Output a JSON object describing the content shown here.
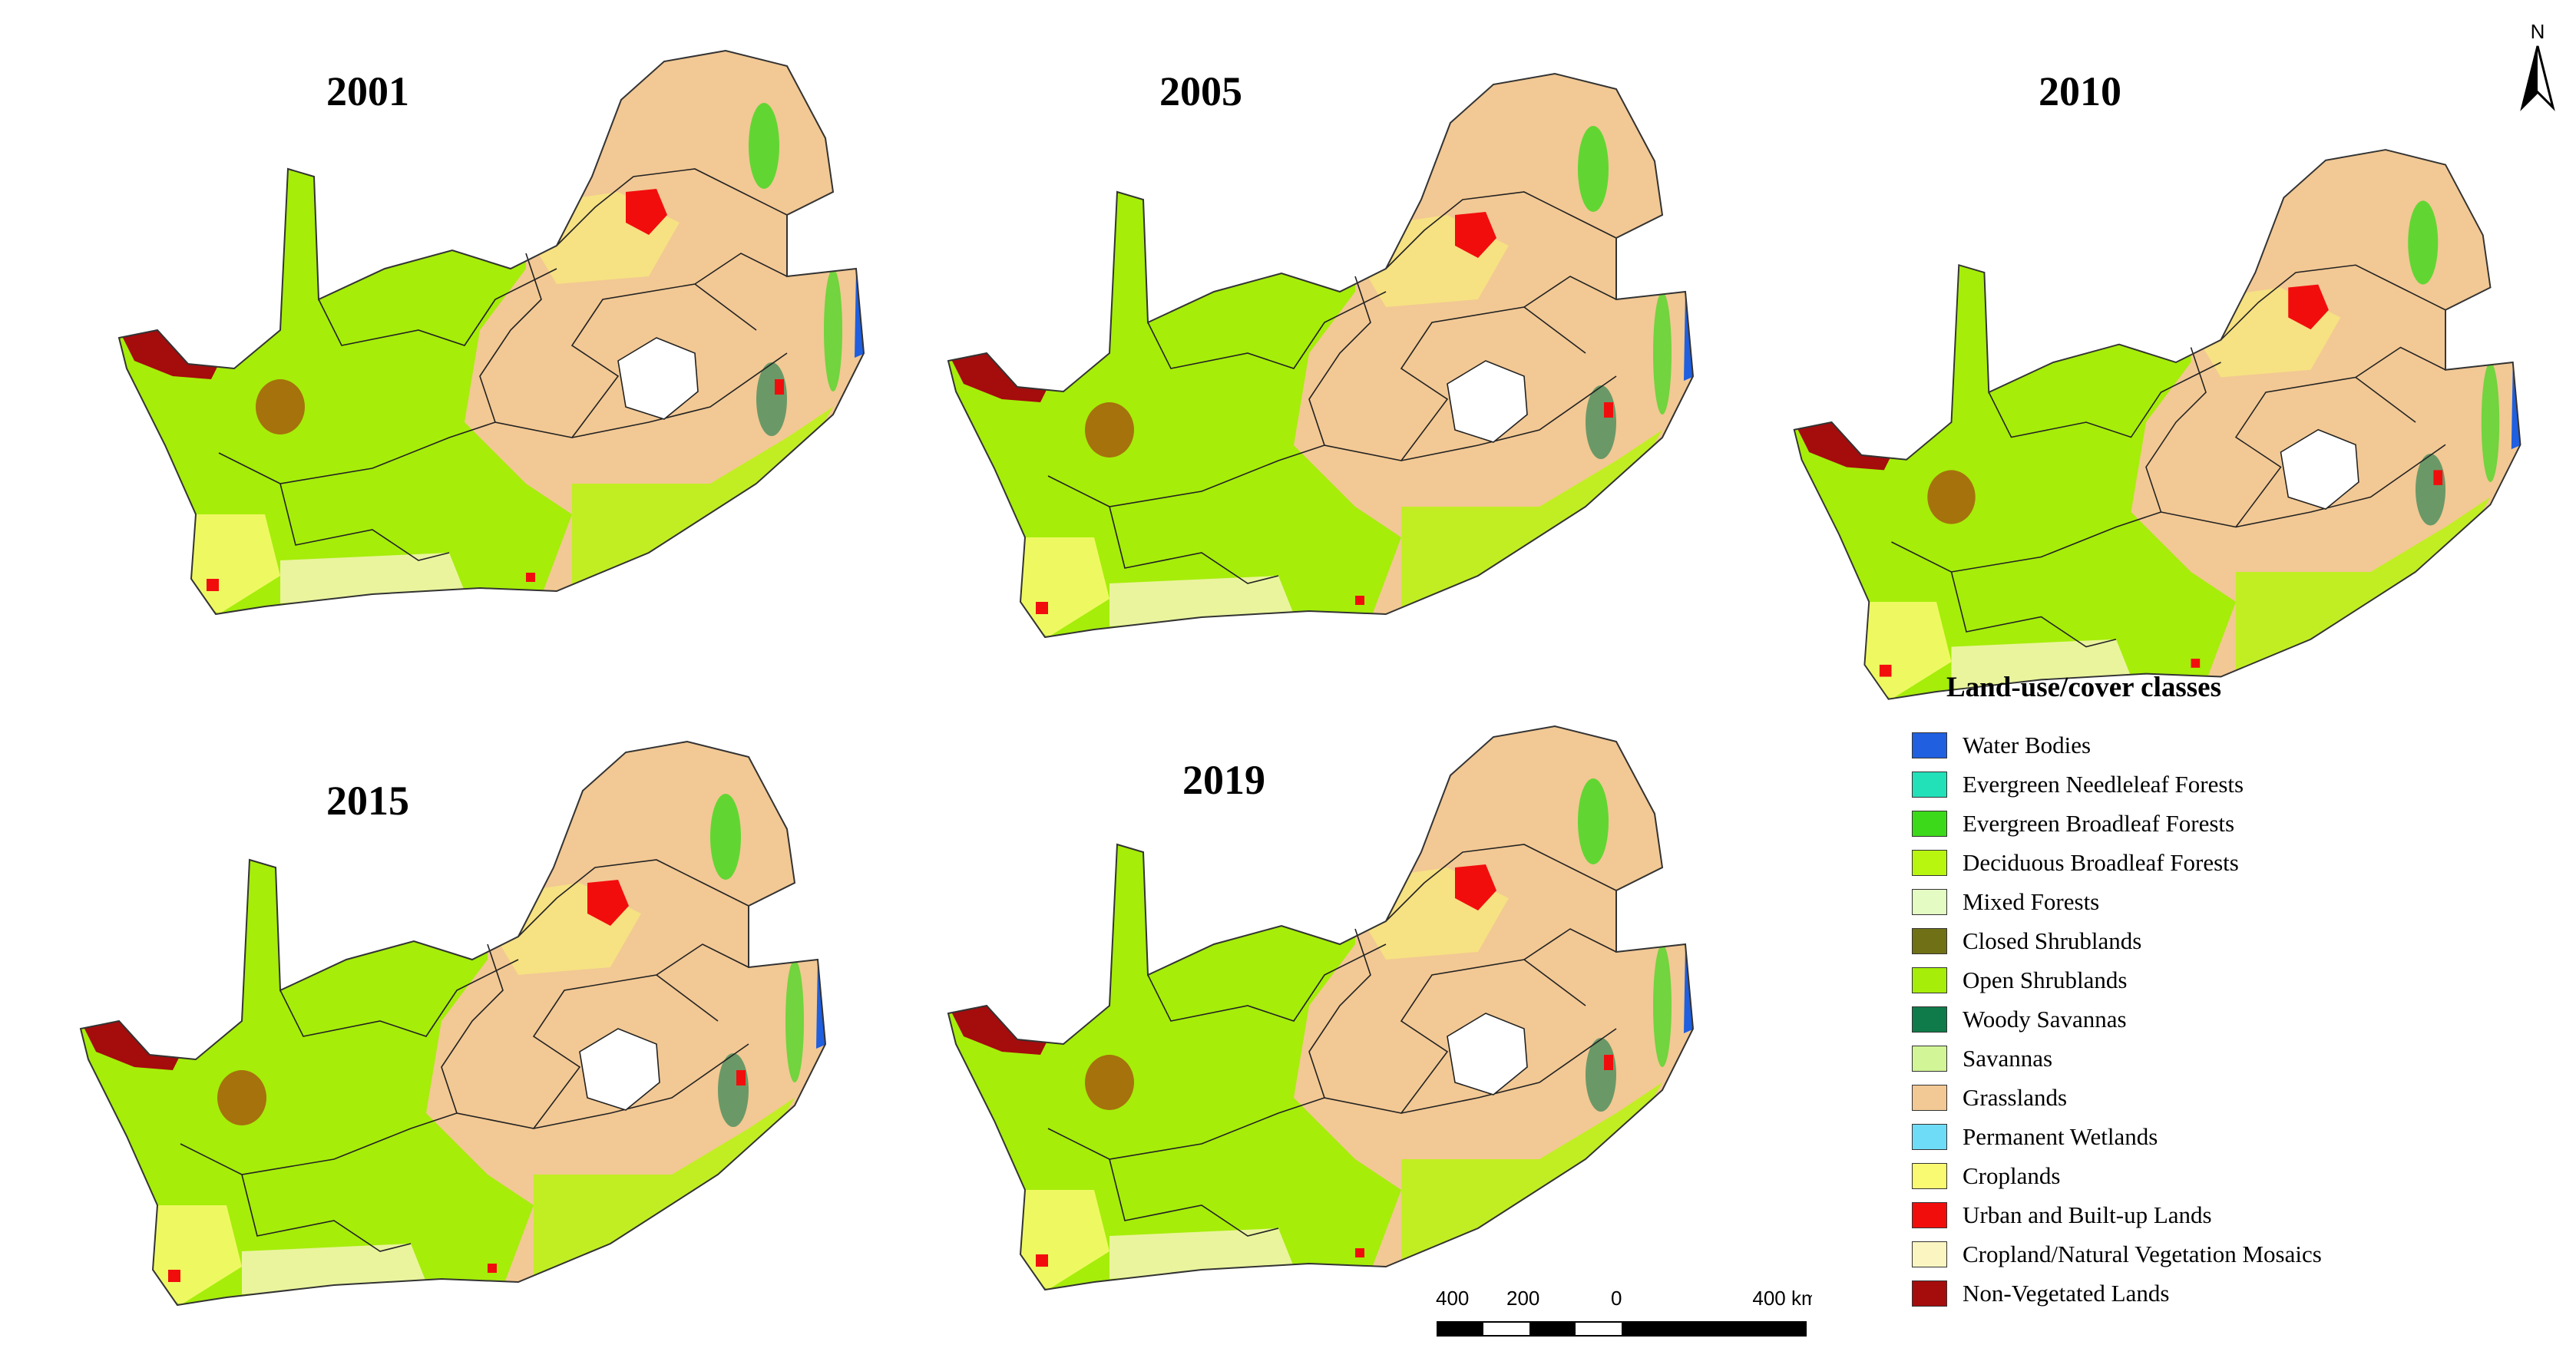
{
  "panels": [
    {
      "year": "2001"
    },
    {
      "year": "2005"
    },
    {
      "year": "2010"
    },
    {
      "year": "2015"
    },
    {
      "year": "2019"
    }
  ],
  "legend": {
    "title": "Land-use/cover classes",
    "items": [
      {
        "label": "Water Bodies",
        "color": "#1f5fe0"
      },
      {
        "label": "Evergreen Needleleaf Forests",
        "color": "#22e0b8"
      },
      {
        "label": "Evergreen Broadleaf Forests",
        "color": "#3cd91a"
      },
      {
        "label": "Deciduous Broadleaf Forests",
        "color": "#b8f50f"
      },
      {
        "label": "Mixed Forests",
        "color": "#e4fbc4"
      },
      {
        "label": "Closed Shrublands",
        "color": "#707016"
      },
      {
        "label": "Open Shrublands",
        "color": "#a6ed0a"
      },
      {
        "label": "Woody Savannas",
        "color": "#0f7a4a"
      },
      {
        "label": "Savannas",
        "color": "#d2f598"
      },
      {
        "label": "Grasslands",
        "color": "#f2c894"
      },
      {
        "label": "Permanent Wetlands",
        "color": "#6fdcf7"
      },
      {
        "label": "Croplands",
        "color": "#fafa72"
      },
      {
        "label": "Urban and Built-up Lands",
        "color": "#f20d0d"
      },
      {
        "label": "Cropland/Natural Vegetation Mosaics",
        "color": "#fbf5c2"
      },
      {
        "label": "Non-Vegetated Lands",
        "color": "#a50c0c"
      }
    ]
  },
  "scale_bar": {
    "labels": [
      "400",
      "200",
      "0",
      "400 km"
    ]
  },
  "north_arrow": {
    "label": "N"
  }
}
